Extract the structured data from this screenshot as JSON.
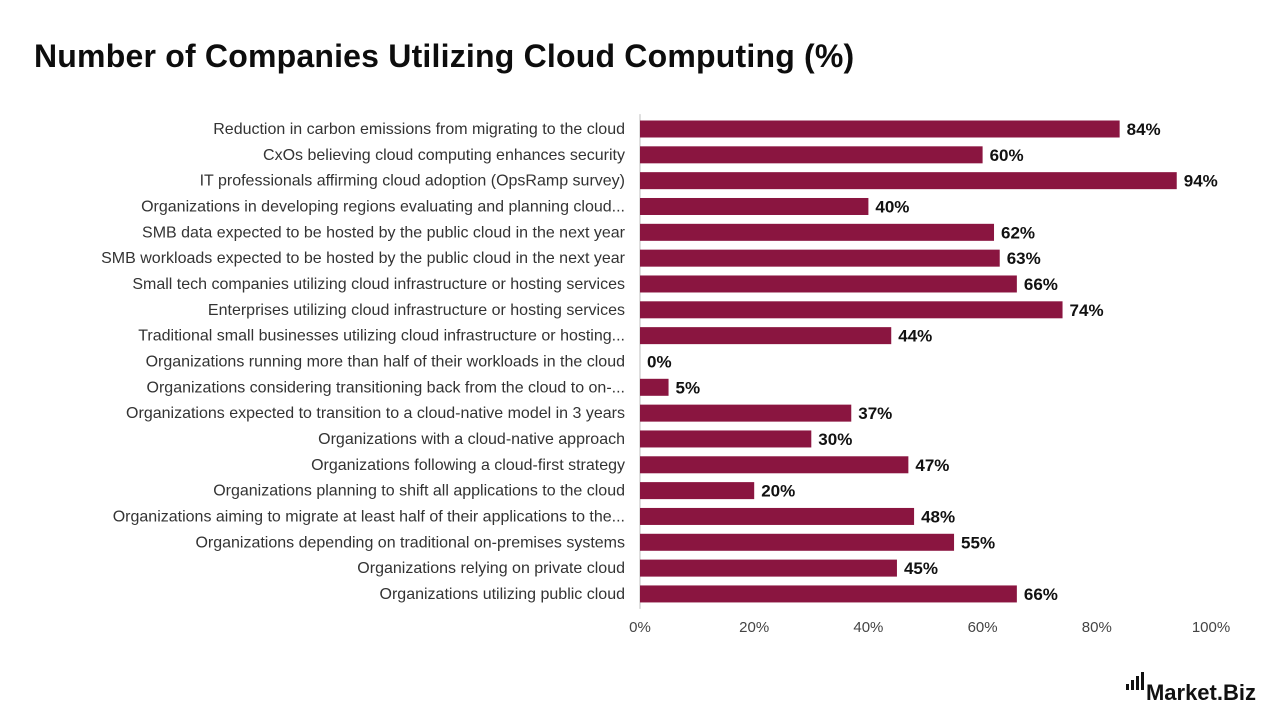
{
  "title": "Number of Companies Utilizing Cloud Computing (%)",
  "brand": {
    "text": "Market.Biz"
  },
  "colors": {
    "bar": "#8a1540",
    "axis": "#bfbfbf"
  },
  "chart_data": {
    "type": "bar",
    "orientation": "horizontal",
    "categories": [
      "Reduction in carbon emissions from migrating to the cloud",
      "CxOs believing cloud computing enhances security",
      "IT professionals affirming cloud adoption (OpsRamp survey)",
      "Organizations in developing regions evaluating and planning cloud...",
      "SMB data expected to be hosted by the public cloud in the next year",
      "SMB workloads expected to be hosted by the public cloud in the next year",
      "Small tech companies utilizing cloud infrastructure or hosting services",
      "Enterprises utilizing cloud infrastructure or hosting services",
      "Traditional small businesses utilizing cloud infrastructure or hosting...",
      "Organizations running more than half of their workloads in the cloud",
      "Organizations considering transitioning back from the cloud to on-...",
      "Organizations expected to transition to a cloud-native model in 3 years",
      "Organizations with a cloud-native approach",
      "Organizations following a cloud-first strategy",
      "Organizations planning to shift all applications to the cloud",
      "Organizations aiming to migrate at least half of their applications to the...",
      "Organizations depending on traditional on-premises systems",
      "Organizations relying on private cloud",
      "Organizations utilizing public cloud"
    ],
    "values": [
      84,
      60,
      94,
      40,
      62,
      63,
      66,
      74,
      44,
      0,
      5,
      37,
      30,
      47,
      20,
      48,
      55,
      45,
      66
    ],
    "value_labels": [
      "84%",
      "60%",
      "94%",
      "40%",
      "62%",
      "63%",
      "66%",
      "74%",
      "44%",
      "0%",
      "5%",
      "37%",
      "30%",
      "47%",
      "20%",
      "48%",
      "55%",
      "45%",
      "66%"
    ],
    "xlim": [
      0,
      100
    ],
    "xticks": [
      0,
      20,
      40,
      60,
      80,
      100
    ],
    "xtick_labels": [
      "0%",
      "20%",
      "40%",
      "60%",
      "80%",
      "100%"
    ],
    "grid": false,
    "legend": "none"
  }
}
